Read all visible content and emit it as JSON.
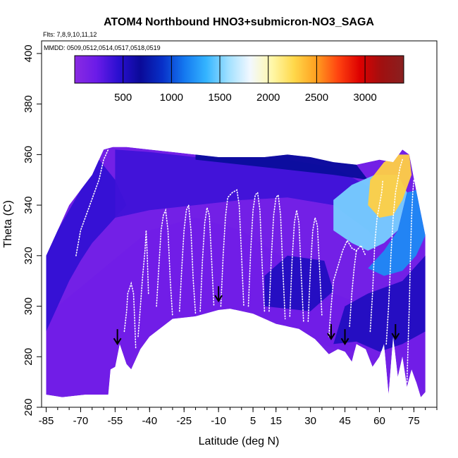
{
  "chart_data": {
    "type": "heatmap",
    "title": "ATOM4 Northbound HNO3+submicron-NO3_SAGA",
    "flights_note": "Flts: 7,8,9,10,11,12",
    "dates_note": "MMDD: 0509,0512,0514,0517,0518,0519",
    "xlabel": "Latitude (deg N)",
    "ylabel": "Theta (C)",
    "xlim": [
      -87,
      85
    ],
    "ylim": [
      260,
      405
    ],
    "x_ticks": [
      -85,
      -70,
      -55,
      -40,
      -25,
      -10,
      5,
      15,
      30,
      45,
      60,
      75
    ],
    "y_ticks": [
      260,
      280,
      300,
      320,
      340,
      360,
      380,
      400
    ],
    "colorbar": {
      "range": [
        0,
        3400
      ],
      "ticks": [
        500,
        1000,
        1500,
        2000,
        2500,
        3000
      ],
      "colors": [
        "#8a2be2",
        "#6a1be8",
        "#2a0fd0",
        "#0a0a98",
        "#0830c8",
        "#1478f0",
        "#34b4ff",
        "#a0e0ff",
        "#f2f8ff",
        "#fff7a8",
        "#ffd84a",
        "#ffa020",
        "#ff4410",
        "#dd0000",
        "#a01010",
        "#882020"
      ]
    },
    "boundary_top": [
      [
        -85,
        320
      ],
      [
        -80,
        330
      ],
      [
        -75,
        340
      ],
      [
        -70,
        346
      ],
      [
        -65,
        352
      ],
      [
        -62,
        358
      ],
      [
        -60,
        362
      ],
      [
        -56,
        363
      ],
      [
        -50,
        363
      ],
      [
        -40,
        362
      ],
      [
        -30,
        361
      ],
      [
        -20,
        360
      ],
      [
        -10,
        359
      ],
      [
        0,
        359
      ],
      [
        10,
        359
      ],
      [
        20,
        360
      ],
      [
        30,
        359
      ],
      [
        40,
        357
      ],
      [
        50,
        356
      ],
      [
        60,
        358
      ],
      [
        66,
        357
      ],
      [
        70,
        362
      ],
      [
        73,
        360
      ],
      [
        76,
        346
      ],
      [
        80,
        328
      ]
    ],
    "boundary_bottom": [
      [
        80,
        266
      ],
      [
        78,
        264
      ],
      [
        76,
        270
      ],
      [
        74,
        275
      ],
      [
        72,
        268
      ],
      [
        70,
        280
      ],
      [
        68,
        272
      ],
      [
        66,
        288
      ],
      [
        64,
        265
      ],
      [
        62,
        285
      ],
      [
        60,
        280
      ],
      [
        57,
        276
      ],
      [
        54,
        283
      ],
      [
        50,
        285
      ],
      [
        48,
        278
      ],
      [
        45,
        282
      ],
      [
        42,
        283
      ],
      [
        38,
        281
      ],
      [
        32,
        287
      ],
      [
        25,
        291
      ],
      [
        15,
        293
      ],
      [
        5,
        297
      ],
      [
        -5,
        299
      ],
      [
        -10,
        298.5
      ],
      [
        -20,
        296
      ],
      [
        -30,
        295
      ],
      [
        -40,
        288
      ],
      [
        -44,
        283
      ],
      [
        -48,
        275
      ],
      [
        -50,
        277
      ],
      [
        -53,
        285
      ],
      [
        -55,
        276
      ],
      [
        -57,
        275
      ],
      [
        -58,
        265
      ],
      [
        -68,
        265
      ],
      [
        -78,
        264
      ],
      [
        -85,
        265
      ]
    ],
    "regions": [
      {
        "level": 180,
        "points": [
          [
            -85,
            265
          ],
          [
            -58,
            265
          ],
          [
            -55,
            276
          ],
          [
            -50,
            277
          ],
          [
            -40,
            288
          ],
          [
            -20,
            296
          ],
          [
            0,
            299
          ],
          [
            20,
            292
          ],
          [
            35,
            285
          ],
          [
            45,
            282
          ],
          [
            55,
            283
          ],
          [
            66,
            288
          ],
          [
            70,
            280
          ],
          [
            76,
            270
          ],
          [
            80,
            266
          ],
          [
            80,
            290
          ],
          [
            70,
            298
          ],
          [
            55,
            300
          ],
          [
            40,
            305
          ],
          [
            20,
            318
          ],
          [
            0,
            330
          ],
          [
            -20,
            335
          ],
          [
            -40,
            330
          ],
          [
            -60,
            315
          ],
          [
            -80,
            300
          ],
          [
            -85,
            290
          ]
        ]
      },
      {
        "level": 420,
        "points": [
          [
            -85,
            290
          ],
          [
            -80,
            300
          ],
          [
            -75,
            310
          ],
          [
            -70,
            318
          ],
          [
            -65,
            325
          ],
          [
            -60,
            330
          ],
          [
            -55,
            335
          ],
          [
            -50,
            340
          ],
          [
            -55,
            350
          ],
          [
            -62,
            358
          ],
          [
            -70,
            346
          ],
          [
            -80,
            330
          ],
          [
            -85,
            320
          ]
        ]
      },
      {
        "level": 380,
        "points": [
          [
            -55,
            335
          ],
          [
            -40,
            338
          ],
          [
            -20,
            340
          ],
          [
            0,
            342
          ],
          [
            20,
            343
          ],
          [
            40,
            340
          ],
          [
            55,
            330
          ],
          [
            60,
            325
          ],
          [
            60,
            345
          ],
          [
            40,
            355
          ],
          [
            20,
            358
          ],
          [
            0,
            358
          ],
          [
            -20,
            359
          ],
          [
            -40,
            361
          ],
          [
            -55,
            362
          ]
        ]
      },
      {
        "level": 520,
        "points": [
          [
            10,
            300
          ],
          [
            30,
            298
          ],
          [
            40,
            306
          ],
          [
            36,
            318
          ],
          [
            20,
            320
          ],
          [
            10,
            312
          ]
        ]
      },
      {
        "level": 520,
        "points": [
          [
            40,
            285
          ],
          [
            50,
            286
          ],
          [
            60,
            282
          ],
          [
            70,
            285
          ],
          [
            80,
            290
          ],
          [
            80,
            320
          ],
          [
            70,
            310
          ],
          [
            55,
            305
          ],
          [
            45,
            300
          ]
        ]
      },
      {
        "level": 700,
        "points": [
          [
            -20,
            362
          ],
          [
            0,
            360
          ],
          [
            20,
            361
          ],
          [
            40,
            358
          ],
          [
            50,
            356
          ],
          [
            55,
            350
          ],
          [
            40,
            352
          ],
          [
            20,
            354
          ],
          [
            0,
            356
          ],
          [
            -20,
            358
          ]
        ]
      },
      {
        "level": 1500,
        "points": [
          [
            40,
            330
          ],
          [
            48,
            325
          ],
          [
            55,
            322
          ],
          [
            62,
            325
          ],
          [
            68,
            330
          ],
          [
            72,
            345
          ],
          [
            68,
            352
          ],
          [
            58,
            352
          ],
          [
            48,
            348
          ],
          [
            40,
            342
          ]
        ]
      },
      {
        "level": 1200,
        "points": [
          [
            55,
            315
          ],
          [
            62,
            312
          ],
          [
            70,
            314
          ],
          [
            76,
            320
          ],
          [
            80,
            328
          ],
          [
            76,
            346
          ],
          [
            72,
            345
          ],
          [
            68,
            330
          ],
          [
            62,
            322
          ]
        ]
      },
      {
        "level": 2300,
        "points": [
          [
            55,
            340
          ],
          [
            60,
            335
          ],
          [
            66,
            336
          ],
          [
            70,
            342
          ],
          [
            74,
            352
          ],
          [
            73,
            360
          ],
          [
            68,
            360
          ],
          [
            62,
            357
          ],
          [
            56,
            350
          ]
        ]
      }
    ],
    "arrows": [
      [
        -54,
        287
      ],
      [
        -10,
        304
      ],
      [
        39,
        289
      ],
      [
        45,
        287
      ],
      [
        67,
        289
      ]
    ],
    "tracks": [
      [
        [
          -51,
          290
        ],
        [
          -50,
          298
        ],
        [
          -49.5,
          305
        ],
        [
          -48,
          309
        ],
        [
          -47,
          305
        ],
        [
          -46.5,
          295
        ],
        [
          -46,
          283
        ]
      ],
      [
        [
          -45,
          288
        ],
        [
          -44,
          300
        ],
        [
          -43,
          312
        ],
        [
          -42,
          322
        ],
        [
          -41.5,
          330
        ],
        [
          -41,
          320
        ],
        [
          -40.5,
          305
        ]
      ],
      [
        [
          -37,
          300
        ],
        [
          -36,
          315
        ],
        [
          -35,
          330
        ],
        [
          -34,
          336
        ],
        [
          -33,
          338
        ],
        [
          -32,
          330
        ],
        [
          -31,
          310
        ],
        [
          -30,
          296
        ]
      ],
      [
        [
          -27,
          298
        ],
        [
          -26,
          315
        ],
        [
          -25,
          330
        ],
        [
          -24,
          338
        ],
        [
          -23,
          340
        ],
        [
          -22,
          330
        ],
        [
          -21,
          310
        ],
        [
          -20,
          297
        ]
      ],
      [
        [
          -18,
          298
        ],
        [
          -17,
          318
        ],
        [
          -16,
          333
        ],
        [
          -15,
          339
        ],
        [
          -14,
          336
        ],
        [
          -13,
          318
        ],
        [
          -12,
          300
        ]
      ],
      [
        [
          -9,
          300
        ],
        [
          -8,
          320
        ],
        [
          -7,
          335
        ],
        [
          -6,
          343
        ],
        [
          -4,
          345
        ],
        [
          -2,
          346
        ],
        [
          -1,
          340
        ],
        [
          0,
          320
        ],
        [
          1,
          300
        ]
      ],
      [
        [
          3,
          300
        ],
        [
          4,
          322
        ],
        [
          5,
          338
        ],
        [
          6,
          344
        ],
        [
          7,
          345
        ],
        [
          8,
          338
        ],
        [
          9,
          316
        ],
        [
          10,
          298
        ]
      ],
      [
        [
          12,
          298
        ],
        [
          13,
          320
        ],
        [
          14,
          336
        ],
        [
          15,
          343
        ],
        [
          16,
          344
        ],
        [
          17,
          336
        ],
        [
          18,
          314
        ],
        [
          19,
          295
        ]
      ],
      [
        [
          21,
          296
        ],
        [
          22,
          318
        ],
        [
          23,
          333
        ],
        [
          24,
          338
        ],
        [
          25,
          333
        ],
        [
          26,
          312
        ],
        [
          27,
          294
        ]
      ],
      [
        [
          29,
          294
        ],
        [
          30,
          315
        ],
        [
          31,
          330
        ],
        [
          32,
          335
        ],
        [
          33,
          332
        ],
        [
          34,
          314
        ],
        [
          35,
          296
        ]
      ],
      [
        [
          38,
          288
        ],
        [
          39,
          300
        ],
        [
          40,
          310
        ],
        [
          42,
          316
        ],
        [
          44,
          322
        ],
        [
          46,
          326
        ],
        [
          48,
          323
        ],
        [
          50,
          322
        ],
        [
          52,
          324
        ],
        [
          54,
          320
        ]
      ],
      [
        [
          47,
          292
        ],
        [
          48,
          305
        ],
        [
          49,
          315
        ],
        [
          50,
          322
        ]
      ],
      [
        [
          56,
          290
        ],
        [
          57,
          305
        ],
        [
          58,
          325
        ],
        [
          59,
          335
        ],
        [
          60,
          340
        ],
        [
          61,
          345
        ],
        [
          61.5,
          350
        ]
      ],
      [
        [
          63,
          285
        ],
        [
          64,
          300
        ],
        [
          65,
          320
        ],
        [
          66,
          335
        ],
        [
          67,
          345
        ],
        [
          68,
          350
        ],
        [
          69,
          355
        ],
        [
          70,
          358
        ]
      ],
      [
        [
          72,
          270
        ],
        [
          72.5,
          285
        ],
        [
          73,
          300
        ],
        [
          73.5,
          320
        ],
        [
          74,
          335
        ],
        [
          74.5,
          345
        ],
        [
          75,
          350
        ]
      ],
      [
        [
          -72,
          320
        ],
        [
          -70,
          330
        ],
        [
          -66,
          340
        ],
        [
          -62,
          350
        ],
        [
          -60,
          358
        ],
        [
          -58,
          362
        ]
      ]
    ]
  }
}
